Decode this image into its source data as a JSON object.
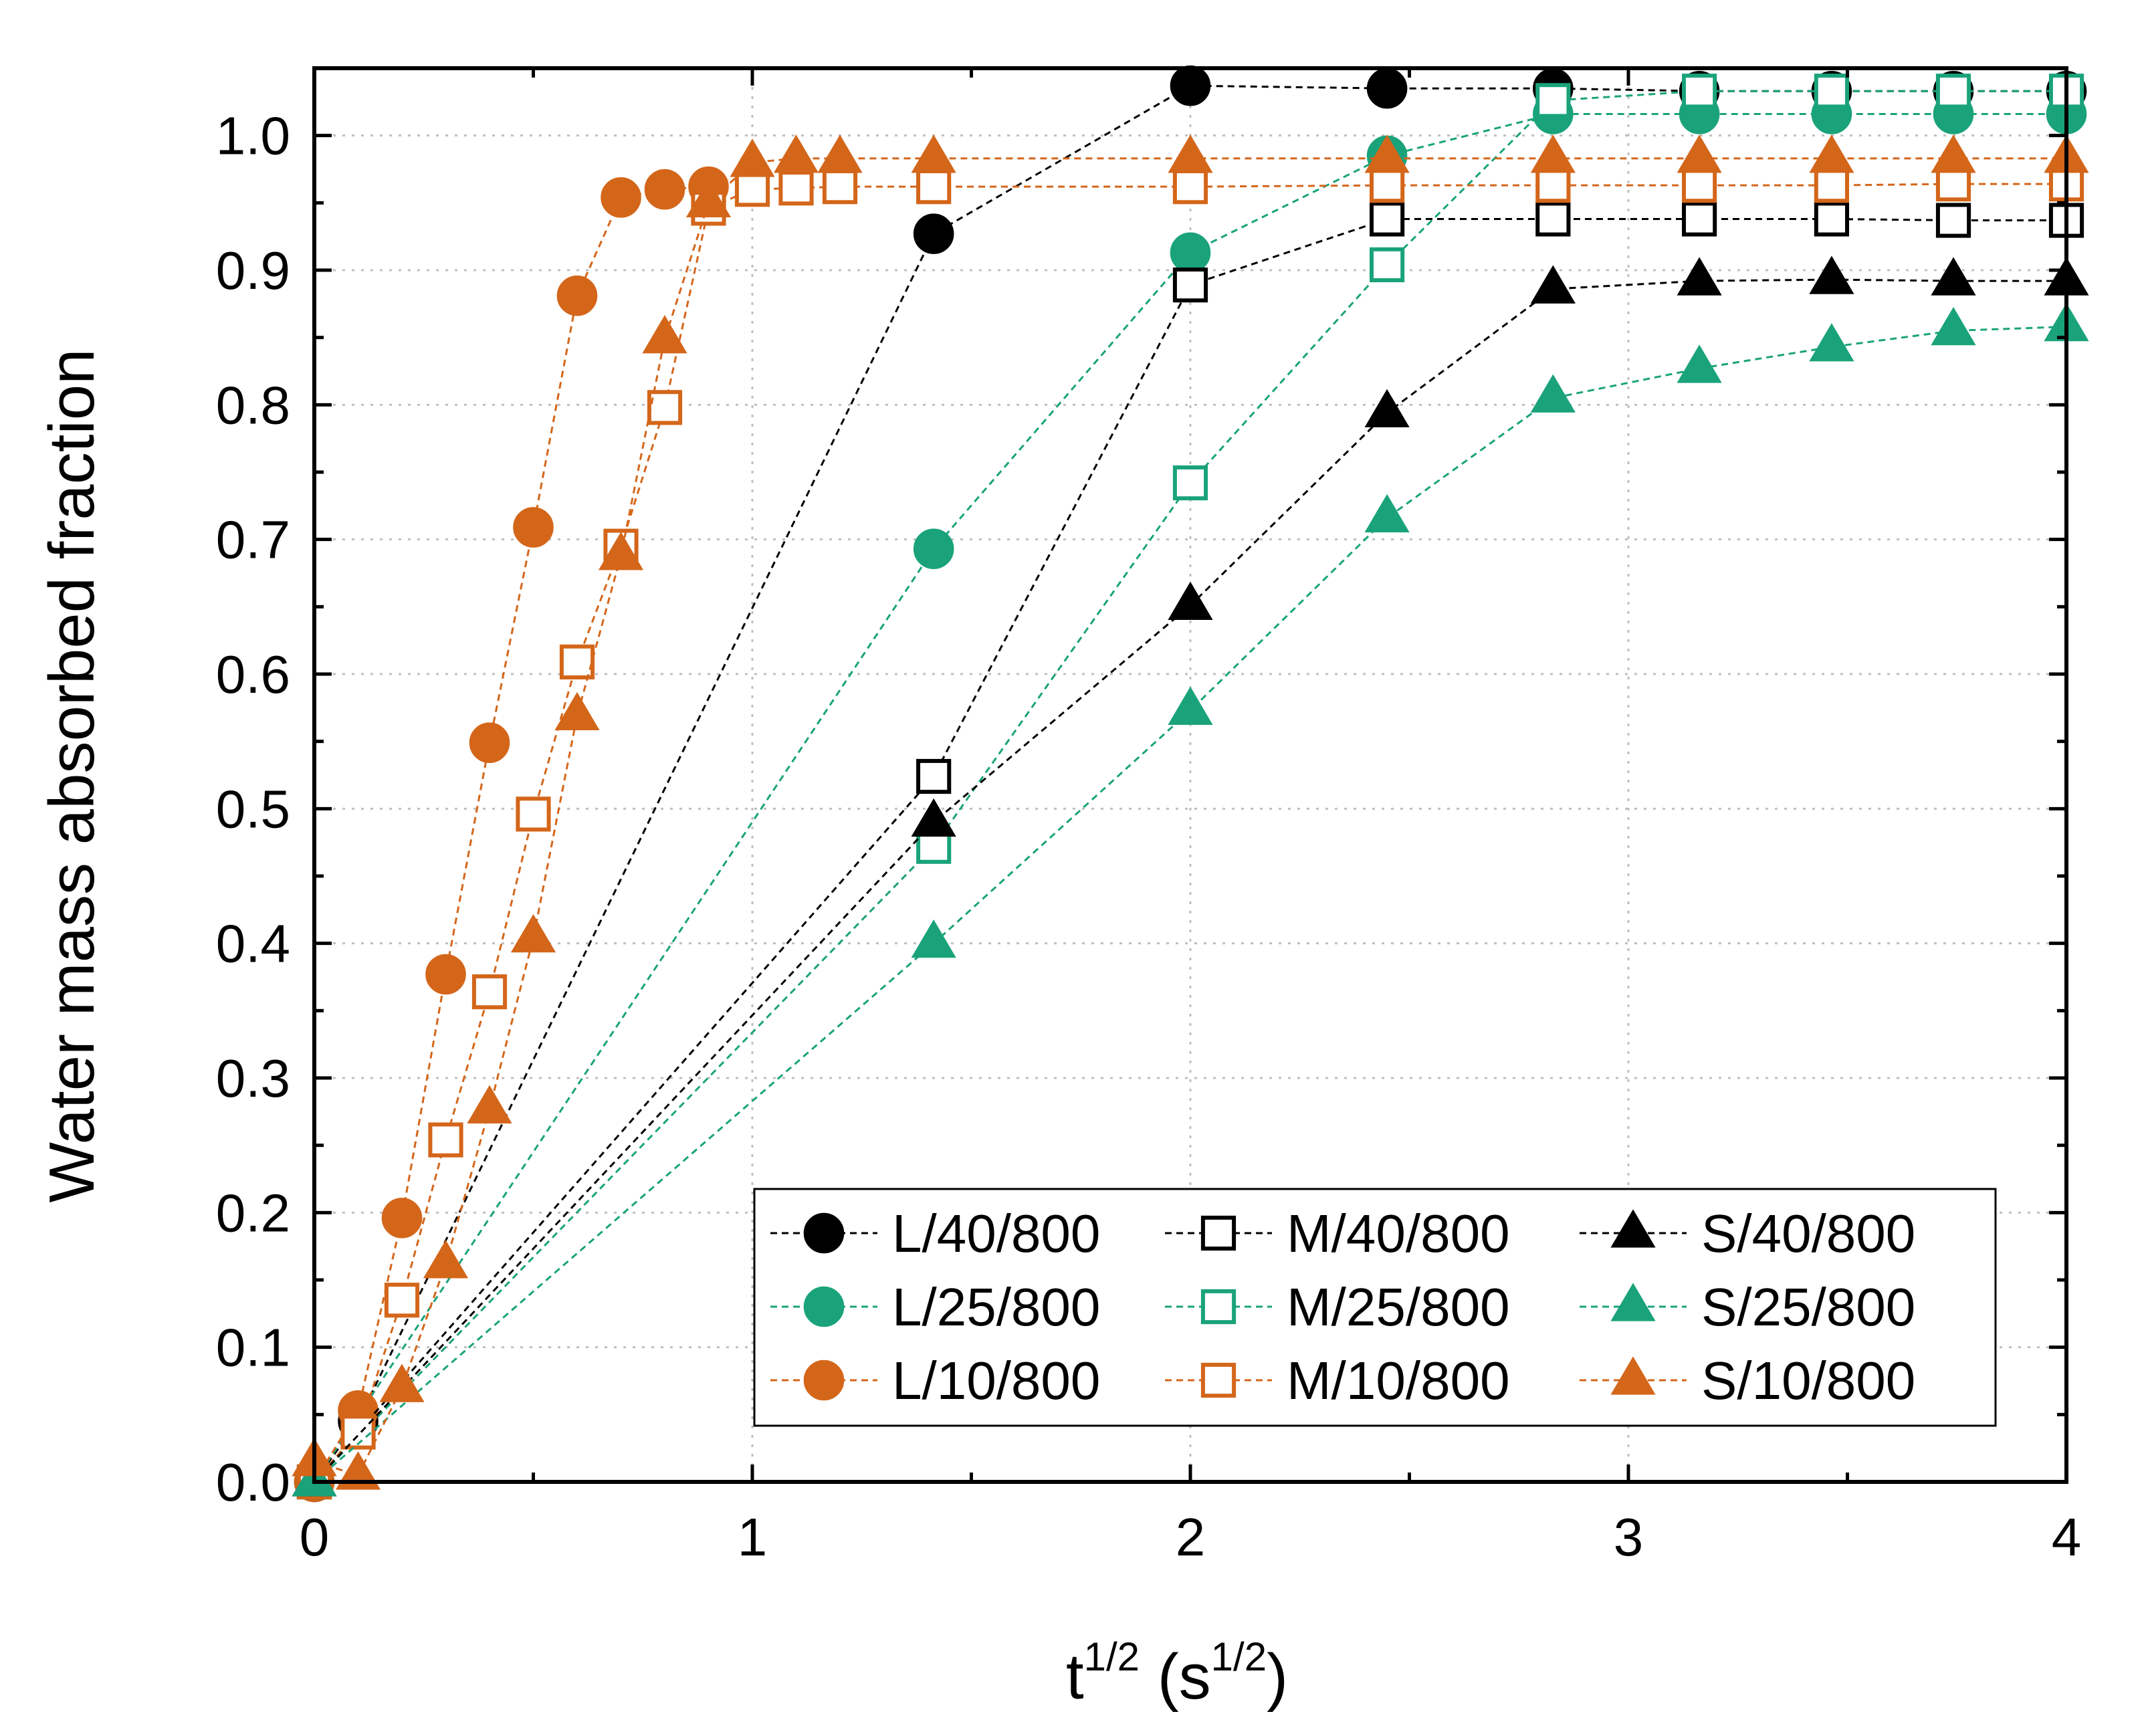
{
  "chart_data": {
    "type": "line",
    "title": "",
    "xlabel": {
      "base": "t",
      "base_exp": "1/2",
      "paren_open": " (s",
      "unit_exp": "1/2",
      "paren_close": ")"
    },
    "ylabel": "Water mass absorbed fraction",
    "xlim": [
      0,
      4
    ],
    "ylim": [
      0,
      1.05
    ],
    "xticks": [
      0,
      1,
      2,
      3,
      4
    ],
    "xtick_labels": [
      "0",
      "1",
      "2",
      "3",
      "4"
    ],
    "yticks": [
      0,
      0.1,
      0.2,
      0.3,
      0.4,
      0.5,
      0.6,
      0.7,
      0.8,
      0.9,
      1.0
    ],
    "ytick_labels": [
      "0.0",
      "0.1",
      "0.2",
      "0.3",
      "0.4",
      "0.5",
      "0.6",
      "0.7",
      "0.8",
      "0.9",
      "1.0"
    ],
    "grid": true,
    "line_style": "dashed",
    "legend_position": "bottom-right",
    "legend_columns": 3,
    "series": [
      {
        "name": "L/40/800",
        "color": "#000000",
        "marker": "circle",
        "filled": true,
        "x": [
          0,
          0.1,
          1.414,
          2,
          2.449,
          2.828,
          3.162,
          3.464,
          3.742,
          4
        ],
        "y": [
          0,
          0.045,
          0.927,
          1.037,
          1.035,
          1.035,
          1.033,
          1.033,
          1.033,
          1.033
        ]
      },
      {
        "name": "L/25/800",
        "color": "#1aa37a",
        "marker": "circle",
        "filled": true,
        "x": [
          0,
          1.414,
          2,
          2.449,
          2.828,
          3.162,
          3.464,
          3.742,
          4
        ],
        "y": [
          0,
          0.693,
          0.913,
          0.985,
          1.016,
          1.016,
          1.016,
          1.016,
          1.016
        ]
      },
      {
        "name": "L/10/800",
        "color": "#d4661a",
        "marker": "circle",
        "filled": true,
        "x": [
          0,
          0.1,
          0.2,
          0.3,
          0.4,
          0.5,
          0.6,
          0.7,
          0.8,
          0.9
        ],
        "y": [
          0,
          0.053,
          0.196,
          0.377,
          0.549,
          0.709,
          0.881,
          0.954,
          0.96,
          0.962
        ]
      },
      {
        "name": "M/40/800",
        "color": "#000000",
        "marker": "square",
        "filled": false,
        "x": [
          0,
          1.414,
          2,
          2.449,
          2.828,
          3.162,
          3.464,
          3.742,
          4
        ],
        "y": [
          0,
          0.524,
          0.889,
          0.938,
          0.938,
          0.938,
          0.938,
          0.937,
          0.937
        ]
      },
      {
        "name": "M/25/800",
        "color": "#1aa37a",
        "marker": "square",
        "filled": false,
        "x": [
          0,
          1.414,
          2,
          2.449,
          2.828,
          3.162,
          3.464,
          3.742,
          4
        ],
        "y": [
          0,
          0.472,
          0.742,
          0.904,
          1.026,
          1.033,
          1.033,
          1.033,
          1.033
        ]
      },
      {
        "name": "M/10/800",
        "color": "#d4661a",
        "marker": "square",
        "filled": false,
        "x": [
          0,
          0.1,
          0.2,
          0.3,
          0.4,
          0.5,
          0.6,
          0.7,
          0.8,
          0.9,
          1.0,
          1.1,
          1.2,
          1.414,
          2,
          2.449,
          2.828,
          3.162,
          3.464,
          3.742,
          4
        ],
        "y": [
          0,
          0.037,
          0.135,
          0.254,
          0.364,
          0.496,
          0.609,
          0.695,
          0.798,
          0.946,
          0.96,
          0.961,
          0.962,
          0.962,
          0.962,
          0.963,
          0.963,
          0.963,
          0.963,
          0.964,
          0.964
        ]
      },
      {
        "name": "S/40/800",
        "color": "#000000",
        "marker": "triangle",
        "filled": true,
        "x": [
          0,
          1.414,
          2,
          2.449,
          2.828,
          3.162,
          3.464,
          3.742,
          4
        ],
        "y": [
          0,
          0.49,
          0.651,
          0.794,
          0.886,
          0.892,
          0.893,
          0.892,
          0.892
        ]
      },
      {
        "name": "S/25/800",
        "color": "#1aa37a",
        "marker": "triangle",
        "filled": true,
        "x": [
          0,
          1.414,
          2,
          2.449,
          2.828,
          3.162,
          3.464,
          3.742,
          4
        ],
        "y": [
          0,
          0.4,
          0.573,
          0.716,
          0.805,
          0.827,
          0.843,
          0.855,
          0.858
        ]
      },
      {
        "name": "S/10/800",
        "color": "#d4661a",
        "marker": "triangle",
        "filled": true,
        "x": [
          0,
          0.1,
          0.2,
          0.3,
          0.4,
          0.5,
          0.6,
          0.7,
          0.8,
          0.9,
          1.0,
          1.1,
          1.2,
          1.414,
          2,
          2.449,
          2.828,
          3.162,
          3.464,
          3.742,
          4
        ],
        "y": [
          0.015,
          0.005,
          0.07,
          0.162,
          0.277,
          0.404,
          0.569,
          0.688,
          0.849,
          0.95,
          0.98,
          0.983,
          0.983,
          0.983,
          0.983,
          0.983,
          0.983,
          0.983,
          0.983,
          0.983,
          0.983
        ]
      }
    ]
  }
}
